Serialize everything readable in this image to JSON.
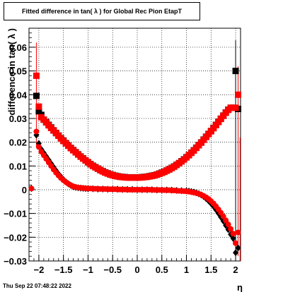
{
  "chart_data": {
    "type": "scatter",
    "title": "Fitted difference in tan( λ ) for Global Rec Pion EtapT",
    "xlabel": "η",
    "ylabel": "difference in tan( λ )",
    "xlim": [
      -2.2,
      2.1
    ],
    "ylim": [
      -0.03,
      0.068
    ],
    "grid": true,
    "xticks": [
      -2,
      -1.5,
      -1,
      -0.5,
      0,
      0.5,
      1,
      1.5,
      2
    ],
    "xtick_labels": [
      "−2",
      "−1.5",
      "−1",
      "−0.5",
      "0",
      "0.5",
      "1",
      "1.5",
      "2"
    ],
    "yticks": [
      -0.03,
      -0.02,
      -0.01,
      0,
      0.01,
      0.02,
      0.03,
      0.04,
      0.05,
      0.06
    ],
    "ytick_labels": [
      "−0.03",
      "−0.02",
      "−0.01",
      "0",
      "0.01",
      "0.02",
      "0.03",
      "0.04",
      "0.05",
      "0.06"
    ],
    "series": [
      {
        "marker": "square",
        "color": "#000000",
        "x": [
          -2.05,
          -2.0,
          -1.95,
          -1.9,
          -1.85,
          -1.8,
          -1.75,
          -1.7,
          -1.65,
          -1.6,
          -1.55,
          -1.5,
          -1.45,
          -1.4,
          -1.35,
          -1.3,
          -1.25,
          -1.2,
          -1.15,
          -1.1,
          -1.05,
          -1.0,
          -0.95,
          -0.9,
          -0.85,
          -0.8,
          -0.75,
          -0.7,
          -0.65,
          -0.6,
          -0.55,
          -0.5,
          -0.45,
          -0.4,
          -0.35,
          -0.3,
          -0.25,
          -0.2,
          -0.15,
          -0.1,
          -0.05,
          0.0,
          0.05,
          0.1,
          0.15,
          0.2,
          0.25,
          0.3,
          0.35,
          0.4,
          0.45,
          0.5,
          0.55,
          0.6,
          0.65,
          0.7,
          0.75,
          0.8,
          0.85,
          0.9,
          0.95,
          1.0,
          1.05,
          1.1,
          1.15,
          1.2,
          1.25,
          1.3,
          1.35,
          1.4,
          1.45,
          1.5,
          1.55,
          1.6,
          1.65,
          1.7,
          1.75,
          1.8,
          1.85,
          1.9,
          1.95,
          2.0,
          2.05
        ],
        "y": [
          0.0395,
          0.033,
          0.0315,
          0.0295,
          0.0285,
          0.0273,
          0.0262,
          0.025,
          0.0239,
          0.0228,
          0.0217,
          0.0207,
          0.0196,
          0.0186,
          0.0176,
          0.0167,
          0.0158,
          0.0149,
          0.014,
          0.0132,
          0.0124,
          0.0116,
          0.0108,
          0.0101,
          0.0095,
          0.0089,
          0.0083,
          0.0078,
          0.0073,
          0.0069,
          0.0065,
          0.0062,
          0.0059,
          0.0057,
          0.0055,
          0.0054,
          0.0053,
          0.0052,
          0.0052,
          0.0052,
          0.0052,
          0.0052,
          0.0052,
          0.0053,
          0.0054,
          0.0055,
          0.0057,
          0.0059,
          0.0061,
          0.0064,
          0.0068,
          0.0072,
          0.0076,
          0.0081,
          0.0086,
          0.0092,
          0.0098,
          0.0105,
          0.0112,
          0.012,
          0.0128,
          0.0137,
          0.0146,
          0.0156,
          0.0166,
          0.0177,
          0.0188,
          0.0199,
          0.0211,
          0.0223,
          0.0235,
          0.0247,
          0.026,
          0.0273,
          0.0286,
          0.0299,
          0.0312,
          0.0325,
          0.0337,
          0.0345,
          0.0345,
          0.05,
          0.034
        ]
      },
      {
        "marker": "square",
        "color": "#ff0000",
        "x": [
          -2.05,
          -2.0,
          -1.95,
          -1.9,
          -1.85,
          -1.8,
          -1.75,
          -1.7,
          -1.65,
          -1.6,
          -1.55,
          -1.5,
          -1.45,
          -1.4,
          -1.35,
          -1.3,
          -1.25,
          -1.2,
          -1.15,
          -1.1,
          -1.05,
          -1.0,
          -0.95,
          -0.9,
          -0.85,
          -0.8,
          -0.75,
          -0.7,
          -0.65,
          -0.6,
          -0.55,
          -0.5,
          -0.45,
          -0.4,
          -0.35,
          -0.3,
          -0.25,
          -0.2,
          -0.15,
          -0.1,
          -0.05,
          0.0,
          0.05,
          0.1,
          0.15,
          0.2,
          0.25,
          0.3,
          0.35,
          0.4,
          0.45,
          0.5,
          0.55,
          0.6,
          0.65,
          0.7,
          0.75,
          0.8,
          0.85,
          0.9,
          0.95,
          1.0,
          1.05,
          1.1,
          1.15,
          1.2,
          1.25,
          1.3,
          1.35,
          1.4,
          1.45,
          1.5,
          1.55,
          1.6,
          1.65,
          1.7,
          1.75,
          1.8,
          1.85,
          1.9,
          1.95,
          2.0,
          2.05
        ],
        "y": [
          0.048,
          0.035,
          0.0305,
          0.0295,
          0.0283,
          0.0271,
          0.026,
          0.0249,
          0.0238,
          0.0227,
          0.0216,
          0.0205,
          0.0195,
          0.0185,
          0.0175,
          0.0166,
          0.0157,
          0.0148,
          0.0139,
          0.0131,
          0.0123,
          0.0115,
          0.0107,
          0.01,
          0.0094,
          0.0088,
          0.0082,
          0.0077,
          0.0072,
          0.0068,
          0.0064,
          0.0061,
          0.0058,
          0.0056,
          0.0054,
          0.0053,
          0.0052,
          0.0051,
          0.0051,
          0.0051,
          0.0051,
          0.0051,
          0.0051,
          0.0052,
          0.0053,
          0.0054,
          0.0056,
          0.0058,
          0.006,
          0.0063,
          0.0067,
          0.0071,
          0.0075,
          0.008,
          0.0085,
          0.0091,
          0.0097,
          0.0104,
          0.0111,
          0.0119,
          0.0127,
          0.0136,
          0.0145,
          0.0155,
          0.0165,
          0.0176,
          0.0187,
          0.0198,
          0.021,
          0.0222,
          0.0234,
          0.0246,
          0.0259,
          0.0272,
          0.0285,
          0.0298,
          0.0311,
          0.0324,
          0.0336,
          0.0345,
          0.0345,
          0.0345,
          0.04
        ]
      },
      {
        "marker": "diamond",
        "color": "#000000",
        "x": [
          -2.15,
          -2.05,
          -2.0,
          -1.95,
          -1.9,
          -1.85,
          -1.8,
          -1.75,
          -1.7,
          -1.65,
          -1.6,
          -1.55,
          -1.5,
          -1.45,
          -1.4,
          -1.35,
          -1.3,
          -1.25,
          -1.2,
          -1.15,
          -1.1,
          -1.05,
          -1.0,
          -0.9,
          -0.8,
          -0.7,
          -0.6,
          -0.5,
          -0.4,
          -0.3,
          -0.2,
          -0.1,
          0.0,
          0.1,
          0.2,
          0.3,
          0.4,
          0.5,
          0.6,
          0.7,
          0.8,
          0.9,
          1.0,
          1.05,
          1.1,
          1.15,
          1.2,
          1.25,
          1.3,
          1.35,
          1.4,
          1.45,
          1.5,
          1.55,
          1.6,
          1.65,
          1.7,
          1.75,
          1.8,
          1.85,
          1.9,
          1.95,
          2.0,
          2.05
        ],
        "y": [
          0.0005,
          0.023,
          0.0195,
          0.017,
          0.0155,
          0.014,
          0.0125,
          0.011,
          0.0095,
          0.008,
          0.0066,
          0.0054,
          0.0043,
          0.0033,
          0.0025,
          0.0018,
          0.0013,
          0.001,
          0.0008,
          0.0007,
          0.0006,
          0.0005,
          0.0004,
          0.0004,
          0.0003,
          0.0003,
          0.0002,
          0.0002,
          0.0002,
          0.0001,
          0.0001,
          0.0001,
          0.0,
          0.0,
          0.0,
          0.0,
          -0.0001,
          -0.0001,
          -0.0001,
          -0.0002,
          -0.0003,
          -0.0004,
          -0.0005,
          -0.0006,
          -0.0008,
          -0.001,
          -0.0013,
          -0.0017,
          -0.0022,
          -0.0029,
          -0.0037,
          -0.0047,
          -0.0058,
          -0.007,
          -0.0084,
          -0.0099,
          -0.0115,
          -0.0132,
          -0.015,
          -0.0168,
          -0.0188,
          -0.0205,
          -0.0265,
          -0.0245
        ]
      },
      {
        "marker": "circle",
        "color": "#ff0000",
        "x": [
          -2.15,
          -2.05,
          -2.0,
          -1.95,
          -1.9,
          -1.85,
          -1.8,
          -1.75,
          -1.7,
          -1.65,
          -1.6,
          -1.55,
          -1.5,
          -1.45,
          -1.4,
          -1.35,
          -1.3,
          -1.25,
          -1.2,
          -1.15,
          -1.1,
          -1.05,
          -1.0,
          -0.95,
          -0.9,
          -0.85,
          -0.8,
          -0.75,
          -0.7,
          -0.65,
          -0.6,
          -0.55,
          -0.5,
          -0.45,
          -0.4,
          -0.35,
          -0.3,
          -0.25,
          -0.2,
          -0.15,
          -0.1,
          -0.05,
          0.0,
          0.05,
          0.1,
          0.15,
          0.2,
          0.25,
          0.3,
          0.35,
          0.4,
          0.45,
          0.5,
          0.55,
          0.6,
          0.65,
          0.7,
          0.75,
          0.8,
          0.85,
          0.9,
          0.95,
          1.0,
          1.05,
          1.1,
          1.15,
          1.2,
          1.25,
          1.3,
          1.35,
          1.4,
          1.45,
          1.5,
          1.55,
          1.6,
          1.65,
          1.7,
          1.75,
          1.8,
          1.85,
          1.9,
          1.95,
          2.0,
          2.05
        ],
        "y": [
          0.0005,
          0.0245,
          0.018,
          0.016,
          0.0145,
          0.013,
          0.0115,
          0.01,
          0.0085,
          0.0072,
          0.006,
          0.0049,
          0.004,
          0.0032,
          0.0025,
          0.0019,
          0.0014,
          0.0011,
          0.0009,
          0.0008,
          0.0007,
          0.0006,
          0.0005,
          0.0005,
          0.0004,
          0.0004,
          0.0004,
          0.0003,
          0.0003,
          0.0003,
          0.0002,
          0.0002,
          0.0002,
          0.0002,
          0.0001,
          0.0001,
          0.0001,
          0.0001,
          0.0,
          0.0,
          0.0,
          0.0,
          0.0,
          0.0,
          0.0,
          0.0,
          0.0,
          0.0,
          0.0,
          -0.0001,
          -0.0001,
          -0.0001,
          -0.0001,
          -0.0002,
          -0.0002,
          -0.0002,
          -0.0003,
          -0.0003,
          -0.0004,
          -0.0005,
          -0.0005,
          -0.0006,
          -0.0007,
          -0.0008,
          -0.001,
          -0.0012,
          -0.0014,
          -0.0017,
          -0.0021,
          -0.0026,
          -0.0032,
          -0.0039,
          -0.0048,
          -0.0058,
          -0.007,
          -0.0083,
          -0.0097,
          -0.0112,
          -0.0129,
          -0.0146,
          -0.0165,
          -0.0185,
          -0.0225,
          -0.018
        ]
      }
    ]
  },
  "footer": {
    "date": "Thu Sep 22 07:48:22 2022"
  }
}
